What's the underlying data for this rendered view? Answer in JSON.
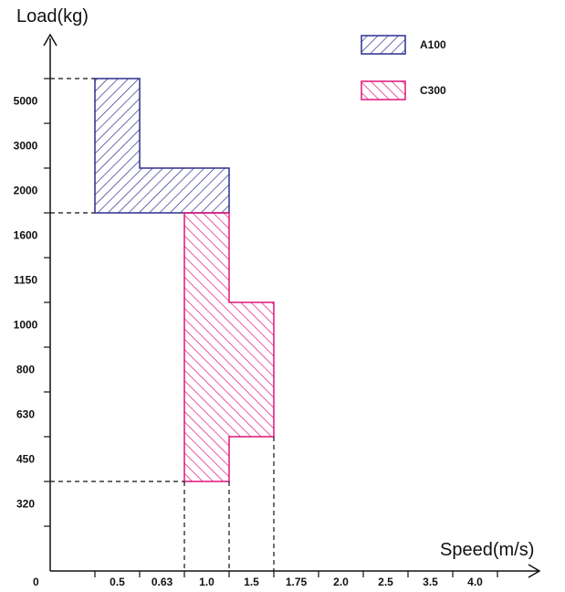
{
  "chart_data": {
    "type": "area",
    "xlabel": "Speed(m/s)",
    "ylabel": "Load(kg)",
    "origin_label": "0",
    "x_ticks": [
      "0.5",
      "0.63",
      "1.0",
      "1.5",
      "1.75",
      "2.0",
      "2.5",
      "3.5",
      "4.0"
    ],
    "y_ticks": [
      "320",
      "450",
      "630",
      "800",
      "1000",
      "1150",
      "1600",
      "2000",
      "3000",
      "5000"
    ],
    "legend": {
      "position": "top-right"
    },
    "series": [
      {
        "name": "A100",
        "color": "#2e2e8f",
        "hatch": "diagonal-right",
        "regions": [
          {
            "speed_from": "0.5",
            "speed_to": "0.63",
            "load_from": "1600",
            "load_to": "5000"
          },
          {
            "speed_from": "0.63",
            "speed_to": "1.5",
            "load_from": "1600",
            "load_to": "2000"
          }
        ]
      },
      {
        "name": "C300",
        "color": "#e0157a",
        "hatch": "diagonal-left",
        "regions": [
          {
            "speed_from": "1.0",
            "speed_to": "1.5",
            "load_from": "320",
            "load_to": "1600"
          },
          {
            "speed_from": "1.5",
            "speed_to": "1.75",
            "load_from": "450",
            "load_to": "1000"
          }
        ]
      }
    ],
    "reference_lines": [
      {
        "axis": "y",
        "value": "5000"
      },
      {
        "axis": "y",
        "value": "1600"
      },
      {
        "axis": "y",
        "value": "320"
      },
      {
        "axis": "x",
        "value": "1.0"
      },
      {
        "axis": "x",
        "value": "1.5"
      },
      {
        "axis": "x",
        "value": "1.75"
      }
    ]
  }
}
